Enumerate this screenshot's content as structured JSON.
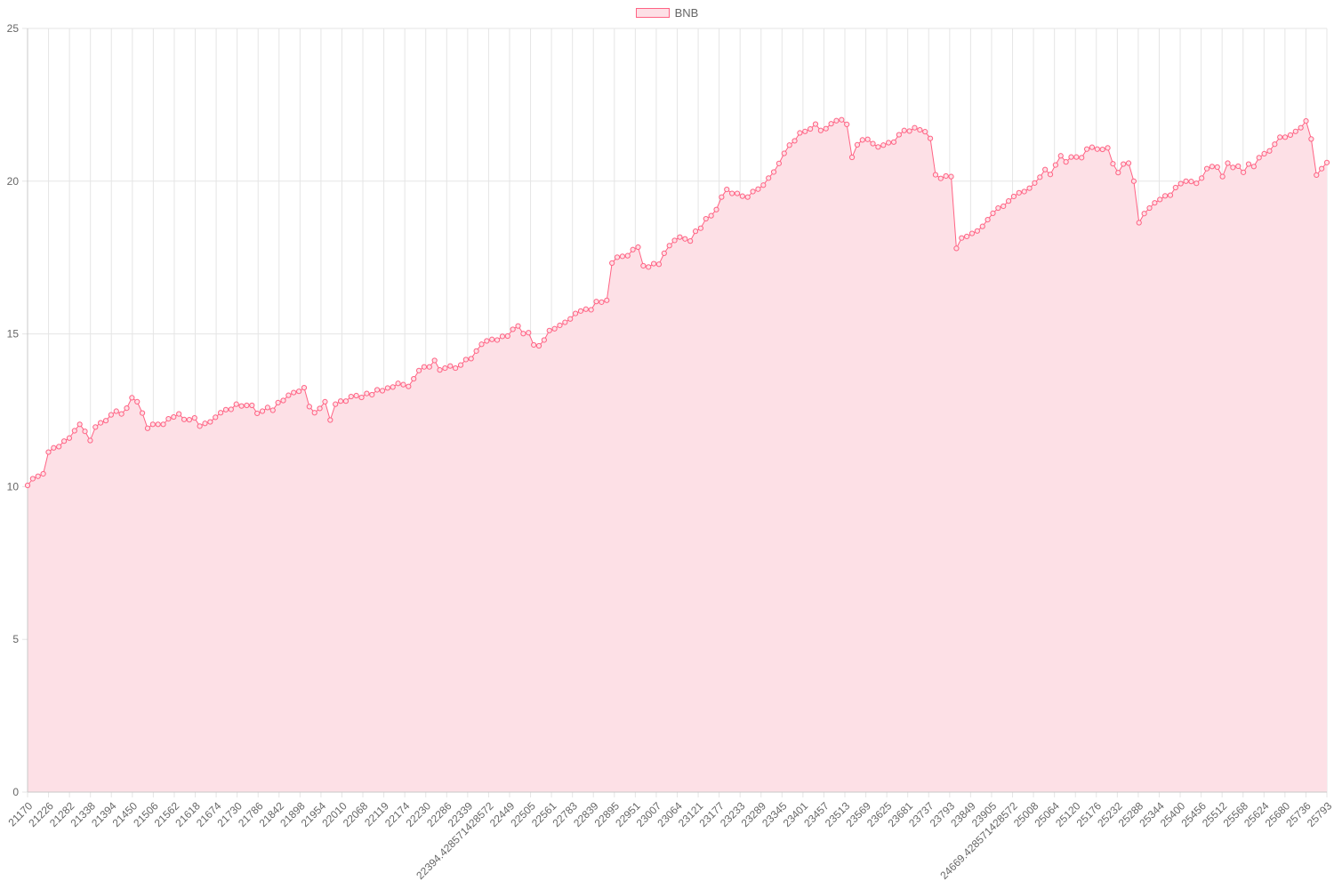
{
  "chart_data": {
    "type": "area",
    "title": "",
    "xlabel": "",
    "ylabel": "",
    "legend": {
      "position": "top-center",
      "entries": [
        "BNB"
      ]
    },
    "grid": true,
    "ylim": [
      0,
      25
    ],
    "y_ticks": [
      "0",
      "5",
      "10",
      "15",
      "20",
      "25"
    ],
    "x_tick_labels": [
      "21170",
      "21226",
      "21282",
      "21338",
      "21394",
      "21450",
      "21506",
      "21562",
      "21618",
      "21674",
      "21730",
      "21786",
      "21842",
      "21898",
      "21954",
      "22010",
      "22068",
      "22119",
      "22174",
      "22230",
      "22286",
      "22339",
      "22394.428571428572",
      "22449",
      "22505",
      "22561",
      "22783",
      "22839",
      "22895",
      "22951",
      "23007",
      "23064",
      "23121",
      "23177",
      "23233",
      "23289",
      "23345",
      "23401",
      "23457",
      "23513",
      "23569",
      "23625",
      "23681",
      "23737",
      "23793",
      "23849",
      "23905",
      "24669.428571428572",
      "25008",
      "25064",
      "25120",
      "25176",
      "25232",
      "25288",
      "25344",
      "25400",
      "25456",
      "25512",
      "25568",
      "25624",
      "25680",
      "25736",
      "25793"
    ],
    "colors": {
      "line": "#ff6384",
      "fill": "#fde0e6",
      "point_fill": "#fde0e6",
      "grid": "#e5e5e5",
      "axis": "#c8c8c8",
      "text": "#666666"
    },
    "series": [
      {
        "name": "BNB",
        "values": [
          10.04,
          10.26,
          10.34,
          10.42,
          11.13,
          11.27,
          11.31,
          11.49,
          11.59,
          11.83,
          12.04,
          11.81,
          11.51,
          11.95,
          12.09,
          12.16,
          12.35,
          12.47,
          12.38,
          12.57,
          12.91,
          12.78,
          12.41,
          11.91,
          12.04,
          12.04,
          12.04,
          12.22,
          12.28,
          12.38,
          12.2,
          12.19,
          12.25,
          11.98,
          12.07,
          12.12,
          12.27,
          12.42,
          12.52,
          12.53,
          12.7,
          12.64,
          12.66,
          12.66,
          12.4,
          12.47,
          12.59,
          12.5,
          12.75,
          12.82,
          12.99,
          13.08,
          13.12,
          13.24,
          12.62,
          12.42,
          12.56,
          12.78,
          12.18,
          12.7,
          12.8,
          12.8,
          12.95,
          12.98,
          12.92,
          13.05,
          13.01,
          13.17,
          13.14,
          13.23,
          13.26,
          13.38,
          13.34,
          13.28,
          13.53,
          13.8,
          13.92,
          13.92,
          14.13,
          13.82,
          13.88,
          13.95,
          13.88,
          13.98,
          14.16,
          14.19,
          14.44,
          14.66,
          14.77,
          14.82,
          14.8,
          14.92,
          14.93,
          15.15,
          15.26,
          15.01,
          15.04,
          14.64,
          14.61,
          14.8,
          15.11,
          15.17,
          15.28,
          15.38,
          15.49,
          15.67,
          15.75,
          15.81,
          15.79,
          16.06,
          16.04,
          16.1,
          17.32,
          17.51,
          17.54,
          17.56,
          17.76,
          17.84,
          17.23,
          17.19,
          17.3,
          17.28,
          17.64,
          17.89,
          18.06,
          18.17,
          18.11,
          18.04,
          18.36,
          18.46,
          18.77,
          18.87,
          19.07,
          19.48,
          19.73,
          19.6,
          19.6,
          19.51,
          19.48,
          19.66,
          19.74,
          19.87,
          20.1,
          20.3,
          20.58,
          20.91,
          21.18,
          21.32,
          21.58,
          21.63,
          21.71,
          21.87,
          21.66,
          21.72,
          21.88,
          21.98,
          22.01,
          21.86,
          20.78,
          21.19,
          21.35,
          21.37,
          21.23,
          21.12,
          21.18,
          21.26,
          21.28,
          21.52,
          21.66,
          21.64,
          21.75,
          21.68,
          21.62,
          21.4,
          20.21,
          20.09,
          20.17,
          20.15,
          17.8,
          18.14,
          18.19,
          18.29,
          18.37,
          18.52,
          18.74,
          18.95,
          19.12,
          19.18,
          19.35,
          19.5,
          19.62,
          19.66,
          19.77,
          19.94,
          20.13,
          20.38,
          20.22,
          20.53,
          20.83,
          20.63,
          20.79,
          20.79,
          20.77,
          21.05,
          21.11,
          21.05,
          21.04,
          21.09,
          20.57,
          20.28,
          20.56,
          20.59,
          20.0,
          18.64,
          18.94,
          19.12,
          19.29,
          19.4,
          19.52,
          19.54,
          19.79,
          19.92,
          20.0,
          19.99,
          19.93,
          20.1,
          20.41,
          20.48,
          20.46,
          20.15,
          20.59,
          20.45,
          20.49,
          20.29,
          20.56,
          20.48,
          20.77,
          20.9,
          20.99,
          21.21,
          21.44,
          21.44,
          21.51,
          21.63,
          21.75,
          21.97,
          21.38,
          20.2,
          20.41,
          20.61
        ]
      }
    ]
  }
}
